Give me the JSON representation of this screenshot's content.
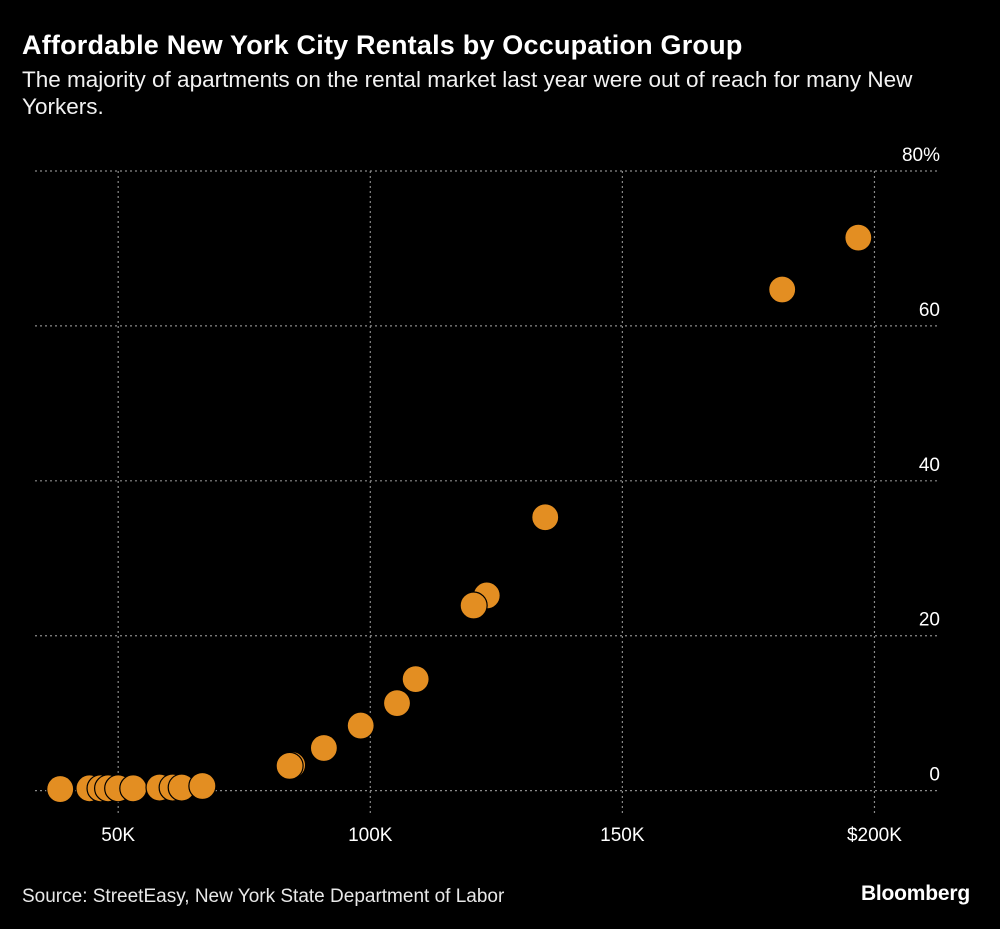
{
  "title": "Affordable New York City Rentals by Occupation Group",
  "subtitle": "The majority of apartments on the rental market last year were out of reach for many New Yorkers.",
  "source": "Source: StreetEasy, New York State Department of Labor",
  "logo": "Bloomberg",
  "colors": {
    "background": "#000000",
    "point": "#E38E22",
    "grid": "#8a8a8a",
    "text": "#ffffff"
  },
  "chart_data": {
    "type": "scatter",
    "title": "Affordable New York City Rentals by Occupation Group",
    "xlabel": "",
    "ylabel": "",
    "xlim": [
      33500,
      213000
    ],
    "ylim": [
      -2.5,
      80
    ],
    "x_ticks": [
      {
        "value": 50000,
        "label": "50K"
      },
      {
        "value": 100000,
        "label": "100K"
      },
      {
        "value": 150000,
        "label": "150K"
      },
      {
        "value": 200000,
        "label": "$200K"
      }
    ],
    "y_ticks": [
      {
        "value": 0,
        "label": "0"
      },
      {
        "value": 20,
        "label": "20"
      },
      {
        "value": 40,
        "label": "40"
      },
      {
        "value": 60,
        "label": "60"
      },
      {
        "value": 80,
        "label": "80%"
      }
    ],
    "grid": true,
    "points": [
      {
        "x": 38500,
        "y": 0.2
      },
      {
        "x": 44300,
        "y": 0.3
      },
      {
        "x": 46500,
        "y": 0.3
      },
      {
        "x": 48000,
        "y": 0.3
      },
      {
        "x": 50000,
        "y": 0.3
      },
      {
        "x": 53000,
        "y": 0.3
      },
      {
        "x": 58200,
        "y": 0.4
      },
      {
        "x": 60800,
        "y": 0.4
      },
      {
        "x": 62600,
        "y": 0.4
      },
      {
        "x": 66700,
        "y": 0.6
      },
      {
        "x": 84500,
        "y": 3.3
      },
      {
        "x": 84000,
        "y": 3.2
      },
      {
        "x": 90800,
        "y": 5.5
      },
      {
        "x": 98100,
        "y": 8.4
      },
      {
        "x": 105300,
        "y": 11.3
      },
      {
        "x": 109000,
        "y": 14.4
      },
      {
        "x": 123100,
        "y": 25.2
      },
      {
        "x": 120500,
        "y": 23.9
      },
      {
        "x": 134700,
        "y": 35.3
      },
      {
        "x": 181700,
        "y": 64.7
      },
      {
        "x": 196800,
        "y": 71.4
      }
    ]
  }
}
